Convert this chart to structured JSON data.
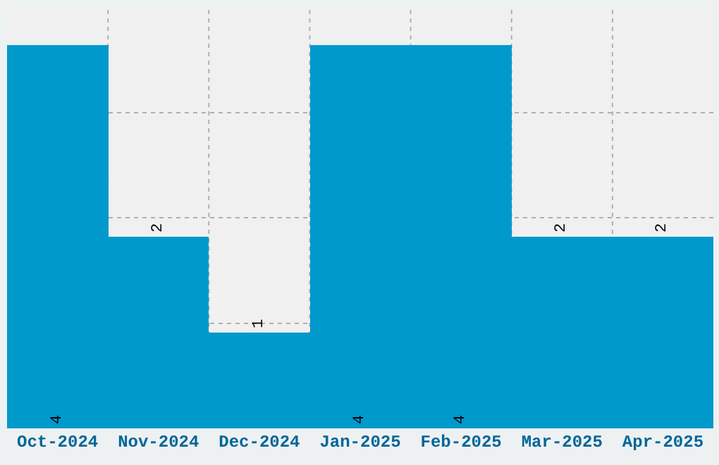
{
  "chart_data": {
    "type": "bar",
    "categories": [
      "Oct-2024",
      "Nov-2024",
      "Dec-2024",
      "Jan-2025",
      "Feb-2025",
      "Mar-2025",
      "Apr-2025"
    ],
    "values": [
      4,
      2,
      1,
      4,
      4,
      2,
      2
    ],
    "color": "#0099cc",
    "ylim": [
      0,
      4.4
    ],
    "yticks": [
      {
        "value": 1.1,
        "label": null
      },
      {
        "value": 2.2,
        "label": null
      },
      {
        "value": 3.3,
        "label": null
      }
    ],
    "tick_labels": "x",
    "grid": true,
    "data_labels": true
  }
}
